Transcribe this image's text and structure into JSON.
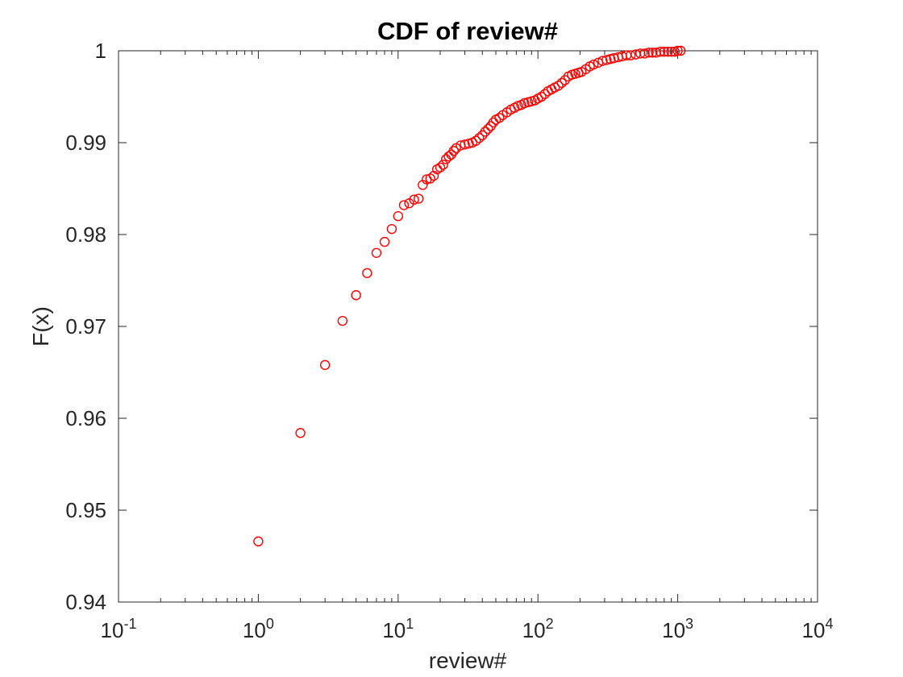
{
  "chart_data": {
    "type": "scatter",
    "title": "CDF of review#",
    "xlabel": "review#",
    "ylabel": "F(x)",
    "xscale": "log",
    "xlim": [
      0.1,
      10000
    ],
    "ylim": [
      0.94,
      1.0
    ],
    "grid": false,
    "legend": "none",
    "xticks": [
      {
        "base": "10",
        "exp": "-1"
      },
      {
        "base": "10",
        "exp": "0"
      },
      {
        "base": "10",
        "exp": "1"
      },
      {
        "base": "10",
        "exp": "2"
      },
      {
        "base": "10",
        "exp": "3"
      },
      {
        "base": "10",
        "exp": "4"
      }
    ],
    "yticks": [
      "0.94",
      "0.95",
      "0.96",
      "0.97",
      "0.98",
      "0.99",
      "1"
    ],
    "marker": "circle",
    "color": "#ff0000",
    "series": [
      {
        "x": [
          1,
          2,
          3,
          4,
          5,
          6,
          7,
          8,
          9,
          10,
          11,
          12,
          13,
          14,
          15,
          16,
          17,
          18,
          19,
          20,
          21,
          22,
          23,
          24,
          25,
          26,
          28,
          30,
          32,
          34,
          36,
          38,
          40,
          42,
          44,
          46,
          48,
          50,
          53,
          56,
          60,
          64,
          68,
          72,
          76,
          80,
          85,
          90,
          95,
          100,
          106,
          112,
          118,
          125,
          132,
          140,
          148,
          156,
          165,
          175,
          185,
          195,
          205,
          220,
          235,
          250,
          270,
          290,
          310,
          330,
          350,
          375,
          400,
          430,
          460,
          500,
          540,
          580,
          620,
          660,
          700,
          750,
          800,
          850,
          900,
          950,
          1000,
          1050
        ],
        "y": [
          0.9466,
          0.9584,
          0.9658,
          0.9706,
          0.9734,
          0.9758,
          0.978,
          0.9792,
          0.9806,
          0.982,
          0.9832,
          0.9834,
          0.9838,
          0.9839,
          0.9854,
          0.986,
          0.9861,
          0.9864,
          0.9871,
          0.9873,
          0.9876,
          0.9882,
          0.9885,
          0.9887,
          0.9891,
          0.9894,
          0.9897,
          0.9898,
          0.9899,
          0.99,
          0.9902,
          0.9905,
          0.9908,
          0.9912,
          0.9915,
          0.9918,
          0.9922,
          0.9925,
          0.9927,
          0.993,
          0.9933,
          0.9936,
          0.9938,
          0.994,
          0.9941,
          0.9943,
          0.9944,
          0.9945,
          0.9946,
          0.9948,
          0.995,
          0.9953,
          0.9956,
          0.9958,
          0.996,
          0.9962,
          0.9965,
          0.9968,
          0.9972,
          0.9974,
          0.9975,
          0.9976,
          0.9977,
          0.998,
          0.9983,
          0.9985,
          0.9987,
          0.9989,
          0.999,
          0.9991,
          0.9992,
          0.9993,
          0.9994,
          0.9995,
          0.9995,
          0.9996,
          0.9997,
          0.9997,
          0.9998,
          0.9998,
          0.9998,
          0.9999,
          0.9999,
          0.9999,
          0.9999,
          0.9999,
          1.0,
          1.0
        ]
      }
    ]
  }
}
